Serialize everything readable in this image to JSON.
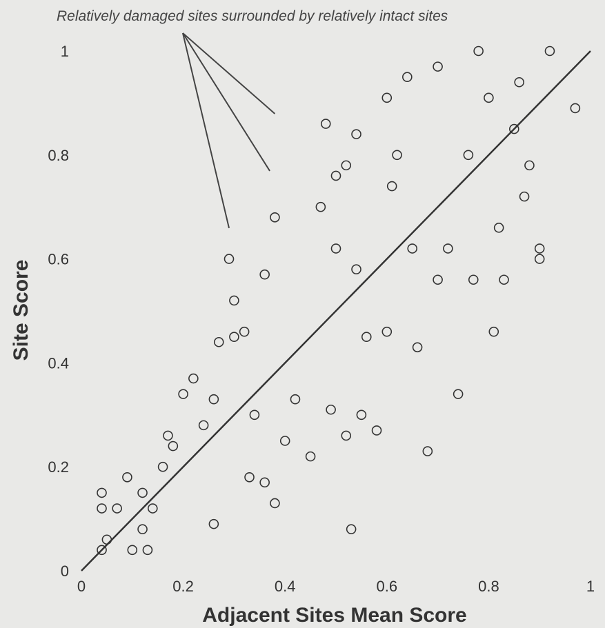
{
  "chart_data": {
    "type": "scatter",
    "title": "",
    "xlabel": "Adjacent Sites Mean Score",
    "ylabel": "Site Score",
    "xlim": [
      0,
      1
    ],
    "ylim": [
      0,
      1
    ],
    "x_ticks": [
      "0",
      "0.2",
      "0.4",
      "0.6",
      "0.8",
      "1"
    ],
    "y_ticks": [
      "0",
      "0.2",
      "0.4",
      "0.6",
      "0.8",
      "1"
    ],
    "grid": false,
    "legend": "none",
    "marker": "open-circle",
    "reference_line": {
      "type": "identity",
      "from": [
        0,
        0
      ],
      "to": [
        1,
        1
      ]
    },
    "annotation": {
      "text": "Relatively damaged sites surrounded by relatively intact sites",
      "targets": [
        [
          0.38,
          0.87
        ],
        [
          0.37,
          0.76
        ],
        [
          0.29,
          0.65
        ]
      ]
    },
    "series": [
      {
        "values": [
          [
            0.04,
            0.04
          ],
          [
            0.05,
            0.06
          ],
          [
            0.04,
            0.15
          ],
          [
            0.04,
            0.12
          ],
          [
            0.07,
            0.12
          ],
          [
            0.09,
            0.18
          ],
          [
            0.1,
            0.04
          ],
          [
            0.12,
            0.08
          ],
          [
            0.13,
            0.04
          ],
          [
            0.12,
            0.15
          ],
          [
            0.14,
            0.12
          ],
          [
            0.16,
            0.2
          ],
          [
            0.17,
            0.26
          ],
          [
            0.18,
            0.24
          ],
          [
            0.2,
            0.34
          ],
          [
            0.22,
            0.37
          ],
          [
            0.24,
            0.28
          ],
          [
            0.26,
            0.33
          ],
          [
            0.27,
            0.44
          ],
          [
            0.26,
            0.09
          ],
          [
            0.3,
            0.45
          ],
          [
            0.3,
            0.52
          ],
          [
            0.29,
            0.6
          ],
          [
            0.34,
            0.3
          ],
          [
            0.32,
            0.46
          ],
          [
            0.33,
            0.18
          ],
          [
            0.36,
            0.17
          ],
          [
            0.38,
            0.13
          ],
          [
            0.36,
            0.57
          ],
          [
            0.38,
            0.68
          ],
          [
            0.4,
            0.25
          ],
          [
            0.42,
            0.33
          ],
          [
            0.45,
            0.22
          ],
          [
            0.47,
            0.7
          ],
          [
            0.48,
            0.86
          ],
          [
            0.49,
            0.31
          ],
          [
            0.5,
            0.76
          ],
          [
            0.5,
            0.62
          ],
          [
            0.52,
            0.78
          ],
          [
            0.52,
            0.26
          ],
          [
            0.54,
            0.58
          ],
          [
            0.54,
            0.84
          ],
          [
            0.53,
            0.08
          ],
          [
            0.55,
            0.3
          ],
          [
            0.56,
            0.45
          ],
          [
            0.58,
            0.27
          ],
          [
            0.6,
            0.91
          ],
          [
            0.6,
            0.46
          ],
          [
            0.61,
            0.74
          ],
          [
            0.62,
            0.8
          ],
          [
            0.64,
            0.95
          ],
          [
            0.65,
            0.62
          ],
          [
            0.66,
            0.43
          ],
          [
            0.68,
            0.23
          ],
          [
            0.7,
            0.97
          ],
          [
            0.7,
            0.56
          ],
          [
            0.72,
            0.62
          ],
          [
            0.74,
            0.34
          ],
          [
            0.76,
            0.8
          ],
          [
            0.77,
            0.56
          ],
          [
            0.78,
            1.0
          ],
          [
            0.8,
            0.91
          ],
          [
            0.81,
            0.46
          ],
          [
            0.82,
            0.66
          ],
          [
            0.83,
            0.56
          ],
          [
            0.85,
            0.85
          ],
          [
            0.86,
            0.94
          ],
          [
            0.87,
            0.72
          ],
          [
            0.88,
            0.78
          ],
          [
            0.9,
            0.6
          ],
          [
            0.9,
            0.62
          ],
          [
            0.92,
            1.0
          ],
          [
            0.97,
            0.89
          ]
        ]
      }
    ]
  }
}
